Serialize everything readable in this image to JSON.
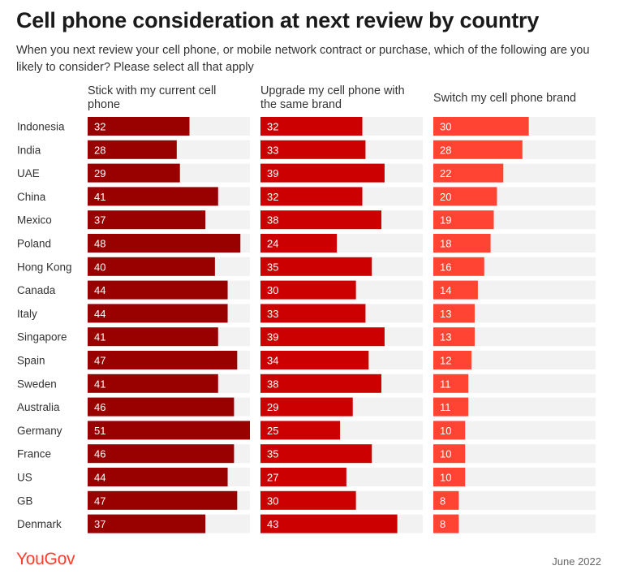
{
  "title": "Cell phone consideration at next review by country",
  "subtitle": "When you next review your cell phone, or mobile network contract or purchase, which of the following are you likely to consider? Please select all that apply",
  "footer": {
    "brand": "YouGov",
    "date": "June 2022"
  },
  "colors": {
    "stick": "#990000",
    "upgrade": "#cc0000",
    "switch": "#ff4433",
    "track": "#f2f2f2",
    "label_text": "#ffffff",
    "country_text": "#333333"
  },
  "chart_data": {
    "type": "bar",
    "orientation": "horizontal",
    "panels": "small-multiples",
    "title": "Cell phone consideration at next review by country",
    "xlim": [
      0,
      51
    ],
    "categories": [
      "Indonesia",
      "India",
      "UAE",
      "China",
      "Mexico",
      "Poland",
      "Hong Kong",
      "Canada",
      "Italy",
      "Singapore",
      "Spain",
      "Sweden",
      "Australia",
      "Germany",
      "France",
      "US",
      "GB",
      "Denmark"
    ],
    "series": [
      {
        "name": "Stick with my current cell phone",
        "values": [
          32,
          28,
          29,
          41,
          37,
          48,
          40,
          44,
          44,
          41,
          47,
          41,
          46,
          51,
          46,
          44,
          47,
          37
        ]
      },
      {
        "name": "Upgrade my cell phone with the same brand",
        "values": [
          32,
          33,
          39,
          32,
          38,
          24,
          35,
          30,
          33,
          39,
          34,
          38,
          29,
          25,
          35,
          27,
          30,
          43
        ]
      },
      {
        "name": "Switch my cell phone brand",
        "values": [
          30,
          28,
          22,
          20,
          19,
          18,
          16,
          14,
          13,
          13,
          12,
          11,
          11,
          10,
          10,
          10,
          8,
          8
        ]
      }
    ]
  }
}
